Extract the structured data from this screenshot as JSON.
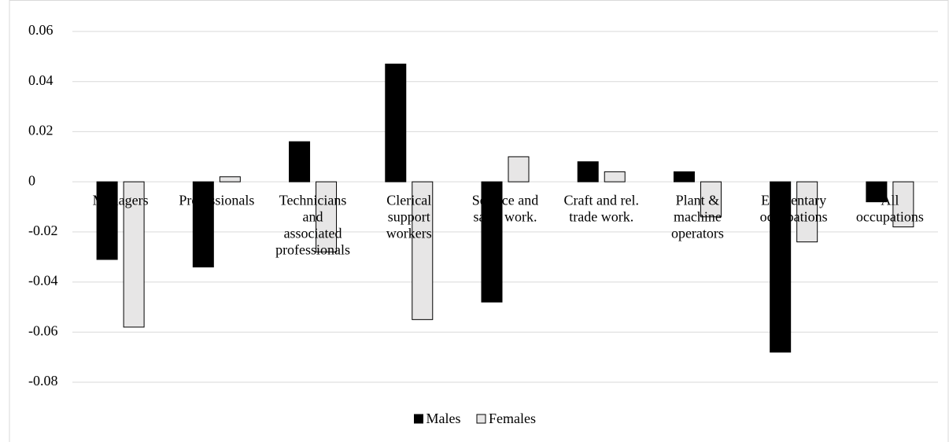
{
  "chart_data": {
    "type": "bar",
    "categories": [
      [
        "Managers"
      ],
      [
        "Professionals"
      ],
      [
        "Technicians",
        "and",
        "associated",
        "professionals"
      ],
      [
        "Clerical",
        "support",
        "workers"
      ],
      [
        "Service and",
        "sales work."
      ],
      [
        "Craft and rel.",
        "trade work."
      ],
      [
        "Plant &",
        "machine",
        "operators"
      ],
      [
        "Elementary",
        "occupations"
      ],
      [
        "All",
        "occupations"
      ]
    ],
    "series": [
      {
        "name": "Males",
        "color": "#000000",
        "values": [
          -0.031,
          -0.034,
          0.016,
          0.047,
          -0.048,
          0.008,
          0.004,
          -0.068,
          -0.008
        ]
      },
      {
        "name": "Females",
        "color": "#e7e6e6",
        "values": [
          -0.058,
          0.002,
          -0.028,
          -0.055,
          0.01,
          0.004,
          -0.014,
          -0.024,
          -0.018
        ]
      }
    ],
    "ylim": [
      -0.08,
      0.06
    ],
    "yticks": [
      0.06,
      0.04,
      0.02,
      0,
      -0.02,
      -0.04,
      -0.06,
      -0.08
    ],
    "grid": true,
    "legend": "bottom"
  }
}
